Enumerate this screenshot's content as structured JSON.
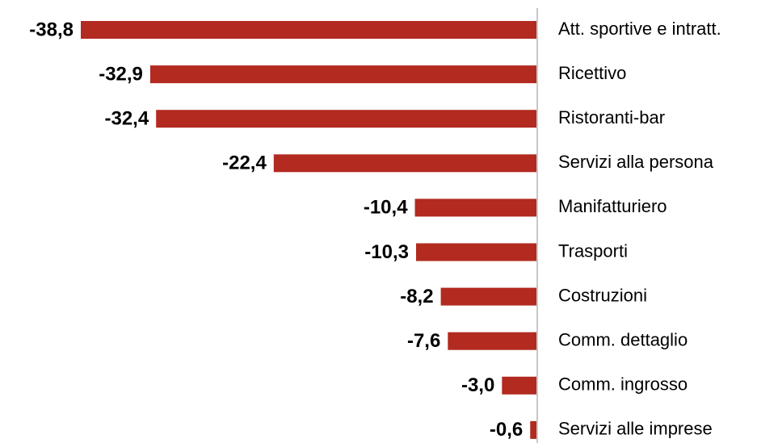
{
  "chart_data": {
    "type": "bar",
    "orientation": "horizontal",
    "categories": [
      "Att. sportive e intratt.",
      "Ricettivo",
      "Ristoranti-bar",
      "Servizi alla persona",
      "Manifatturiero",
      "Trasporti",
      "Costruzioni",
      "Comm. dettaglio",
      "Comm. ingrosso",
      "Servizi alle imprese"
    ],
    "values": [
      -38.8,
      -32.9,
      -32.4,
      -22.4,
      -10.4,
      -10.3,
      -8.2,
      -7.6,
      -3.0,
      -0.6
    ],
    "value_labels": [
      "-38,8",
      "-32,9",
      "-32,4",
      "-22,4",
      "-10,4",
      "-10,3",
      "-8,2",
      "-7,6",
      "-3,0",
      "-0,6"
    ],
    "color": "#b22a20"
  }
}
